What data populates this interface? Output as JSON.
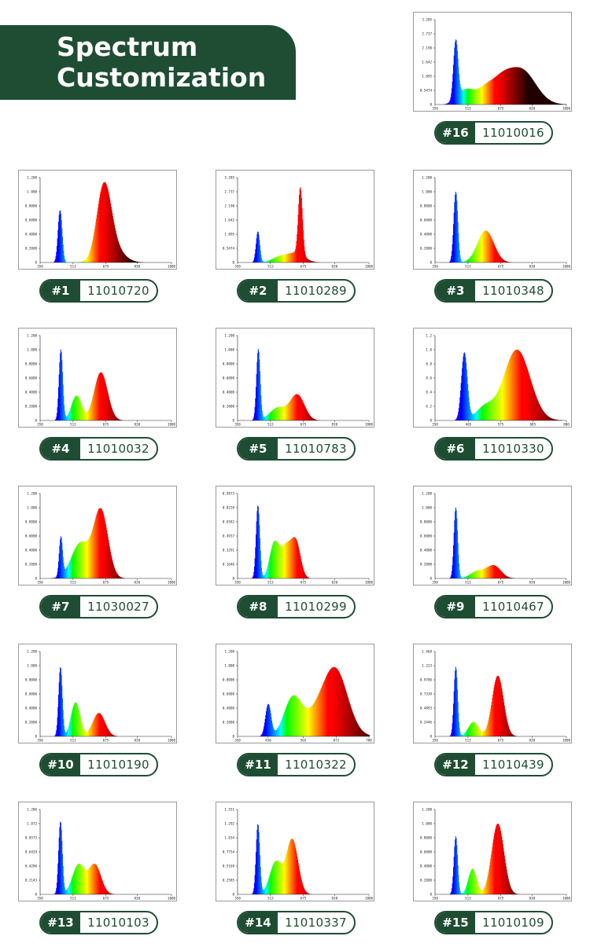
{
  "header": {
    "title_line1": "Spectrum",
    "title_line2": "Customization"
  },
  "colors": {
    "brand": "#1f4d33"
  },
  "chart_data": [
    {
      "id": "#16",
      "code": "11010016",
      "type": "area",
      "x_ticks": [
        "350",
        "513",
        "675",
        "830",
        "1000"
      ],
      "y_ticks": [
        "0.5474",
        "1.095",
        "1.642",
        "2.190",
        "2.737",
        "3.285"
      ],
      "xlim": [
        350,
        1000
      ],
      "ylim": [
        0,
        3.285
      ],
      "peaks": [
        [
          452,
          2.25,
          11
        ],
        [
          500,
          0.55,
          40
        ],
        [
          600,
          0.6,
          45
        ],
        [
          680,
          0.6,
          45
        ],
        [
          775,
          1.35,
          70
        ]
      ]
    },
    {
      "id": "#1",
      "code": "11010720",
      "type": "area",
      "x_ticks": [
        "350",
        "513",
        "675",
        "830",
        "1000"
      ],
      "y_ticks": [
        "0.2000",
        "0.4000",
        "0.6000",
        "0.8000",
        "1.000",
        "1.200"
      ],
      "xlim": [
        350,
        1000
      ],
      "ylim": [
        0,
        1.2
      ],
      "peaks": [
        [
          448,
          0.74,
          10
        ],
        [
          665,
          1.0,
          35
        ],
        [
          710,
          0.2,
          50
        ]
      ]
    },
    {
      "id": "#2",
      "code": "11010289",
      "type": "area",
      "x_ticks": [
        "350",
        "513",
        "675",
        "830",
        "1000"
      ],
      "y_ticks": [
        "0.5474",
        "1.095",
        "1.642",
        "2.190",
        "2.737",
        "3.285"
      ],
      "xlim": [
        350,
        1000
      ],
      "ylim": [
        0,
        3.285
      ],
      "peaks": [
        [
          450,
          1.2,
          9
        ],
        [
          560,
          0.22,
          38
        ],
        [
          660,
          2.6,
          10
        ],
        [
          640,
          0.35,
          40
        ]
      ]
    },
    {
      "id": "#3",
      "code": "11010348",
      "type": "area",
      "x_ticks": [
        "350",
        "513",
        "675",
        "830",
        "1000"
      ],
      "y_ticks": [
        "0.2000",
        "0.4000",
        "0.6000",
        "0.8000",
        "1.000",
        "1.200"
      ],
      "xlim": [
        350,
        1000
      ],
      "ylim": [
        0,
        1.2
      ],
      "peaks": [
        [
          452,
          1.0,
          10
        ],
        [
          600,
          0.45,
          40
        ]
      ]
    },
    {
      "id": "#4",
      "code": "11010032",
      "type": "area",
      "x_ticks": [
        "350",
        "513",
        "675",
        "830",
        "1000"
      ],
      "y_ticks": [
        "0.2000",
        "0.4000",
        "0.6000",
        "0.8000",
        "1.000",
        "1.200"
      ],
      "xlim": [
        350,
        1000
      ],
      "ylim": [
        0,
        1.2
      ],
      "peaks": [
        [
          452,
          1.0,
          9
        ],
        [
          530,
          0.35,
          25
        ],
        [
          650,
          0.68,
          33
        ]
      ]
    },
    {
      "id": "#5",
      "code": "11010783",
      "type": "area",
      "x_ticks": [
        "350",
        "513",
        "675",
        "830",
        "1000"
      ],
      "y_ticks": [
        "0.2000",
        "0.4000",
        "0.6000",
        "0.8000",
        "1.000",
        "1.200"
      ],
      "xlim": [
        350,
        1000
      ],
      "ylim": [
        0,
        1.2
      ],
      "peaks": [
        [
          452,
          1.0,
          9
        ],
        [
          550,
          0.18,
          40
        ],
        [
          645,
          0.36,
          35
        ]
      ]
    },
    {
      "id": "#6",
      "code": "11010330",
      "type": "area",
      "x_ticks": [
        "350",
        "465",
        "575",
        "685",
        "800"
      ],
      "y_ticks": [
        "0.2",
        "0.4",
        "0.6",
        "0.8",
        "1.0",
        "1.2"
      ],
      "xlim": [
        350,
        800
      ],
      "ylim": [
        0,
        1.2
      ],
      "peaks": [
        [
          450,
          0.95,
          10
        ],
        [
          520,
          0.18,
          30
        ],
        [
          630,
          1.0,
          45
        ]
      ]
    },
    {
      "id": "#7",
      "code": "11030027",
      "type": "area",
      "x_ticks": [
        "350",
        "513",
        "675",
        "830",
        "1000"
      ],
      "y_ticks": [
        "0.2000",
        "0.4000",
        "0.6000",
        "0.8000",
        "1.000",
        "1.200"
      ],
      "xlim": [
        350,
        1000
      ],
      "ylim": [
        0,
        1.2
      ],
      "peaks": [
        [
          452,
          0.55,
          8
        ],
        [
          550,
          0.5,
          45
        ],
        [
          650,
          0.95,
          35
        ]
      ]
    },
    {
      "id": "#8",
      "code": "11010299",
      "type": "area",
      "x_ticks": [
        "350",
        "513",
        "675",
        "830",
        "1000"
      ],
      "y_ticks": [
        "0.1646",
        "0.3291",
        "0.4937",
        "0.6582",
        "0.8228",
        "0.9873"
      ],
      "xlim": [
        350,
        1000
      ],
      "ylim": [
        0,
        0.9873
      ],
      "peaks": [
        [
          450,
          0.85,
          9
        ],
        [
          530,
          0.38,
          22
        ],
        [
          590,
          0.38,
          30
        ],
        [
          640,
          0.36,
          22
        ]
      ]
    },
    {
      "id": "#9",
      "code": "11010467",
      "type": "area",
      "x_ticks": [
        "350",
        "513",
        "675",
        "830",
        "1000"
      ],
      "y_ticks": [
        "0.2000",
        "0.4000",
        "0.6000",
        "0.8000",
        "1.000",
        "1.200"
      ],
      "xlim": [
        350,
        1000
      ],
      "ylim": [
        0,
        1.2
      ],
      "peaks": [
        [
          452,
          1.0,
          9
        ],
        [
          560,
          0.1,
          35
        ],
        [
          640,
          0.18,
          35
        ]
      ]
    },
    {
      "id": "#10",
      "code": "11010190",
      "type": "area",
      "x_ticks": [
        "350",
        "513",
        "675",
        "830",
        "1000"
      ],
      "y_ticks": [
        "0.2000",
        "0.4000",
        "0.6000",
        "0.8000",
        "1.000",
        "1.200"
      ],
      "xlim": [
        350,
        1000
      ],
      "ylim": [
        0,
        1.2
      ],
      "peaks": [
        [
          450,
          0.98,
          9
        ],
        [
          525,
          0.48,
          22
        ],
        [
          640,
          0.33,
          30
        ]
      ]
    },
    {
      "id": "#11",
      "code": "11010322",
      "type": "area",
      "x_ticks": [
        "350",
        "450",
        "565",
        "673",
        "780"
      ],
      "y_ticks": [
        "0.2000",
        "0.4000",
        "0.6000",
        "0.8000",
        "1.000",
        "1.200"
      ],
      "xlim": [
        350,
        780
      ],
      "ylim": [
        0,
        1.2
      ],
      "peaks": [
        [
          450,
          0.45,
          9
        ],
        [
          530,
          0.52,
          28
        ],
        [
          670,
          0.92,
          40
        ],
        [
          600,
          0.25,
          40
        ]
      ]
    },
    {
      "id": "#12",
      "code": "11010439",
      "type": "area",
      "x_ticks": [
        "350",
        "513",
        "675",
        "830",
        "1000"
      ],
      "y_ticks": [
        "0.2446",
        "0.4893",
        "0.7339",
        "0.9786",
        "1.223",
        "1.468"
      ],
      "xlim": [
        350,
        1000
      ],
      "ylim": [
        0,
        1.468
      ],
      "peaks": [
        [
          452,
          1.2,
          9
        ],
        [
          540,
          0.25,
          25
        ],
        [
          660,
          1.05,
          28
        ]
      ]
    },
    {
      "id": "#13",
      "code": "11010103",
      "type": "area",
      "x_ticks": [
        "350",
        "513",
        "675",
        "830",
        "1000"
      ],
      "y_ticks": [
        "0.2143",
        "0.4286",
        "0.6429",
        "0.8573",
        "1.072",
        "1.286"
      ],
      "xlim": [
        350,
        1000
      ],
      "ylim": [
        0,
        1.286
      ],
      "peaks": [
        [
          450,
          1.1,
          9
        ],
        [
          540,
          0.45,
          30
        ],
        [
          620,
          0.45,
          30
        ]
      ]
    },
    {
      "id": "#14",
      "code": "11010337",
      "type": "area",
      "x_ticks": [
        "350",
        "513",
        "675",
        "830",
        "1000"
      ],
      "y_ticks": [
        "0.2585",
        "0.5169",
        "0.7754",
        "1.034",
        "1.292",
        "1.551"
      ],
      "xlim": [
        350,
        1000
      ],
      "ylim": [
        0,
        1.551
      ],
      "peaks": [
        [
          450,
          1.28,
          9
        ],
        [
          540,
          0.6,
          30
        ],
        [
          620,
          1.0,
          28
        ]
      ]
    },
    {
      "id": "#15",
      "code": "11010109",
      "type": "area",
      "x_ticks": [
        "350",
        "513",
        "675",
        "830",
        "1000"
      ],
      "y_ticks": [
        "0.2000",
        "0.4000",
        "0.6000",
        "0.8000",
        "1.000",
        "1.200"
      ],
      "xlim": [
        350,
        1000
      ],
      "ylim": [
        0,
        1.2
      ],
      "peaks": [
        [
          452,
          0.82,
          9
        ],
        [
          535,
          0.36,
          20
        ],
        [
          660,
          1.0,
          30
        ]
      ]
    }
  ]
}
